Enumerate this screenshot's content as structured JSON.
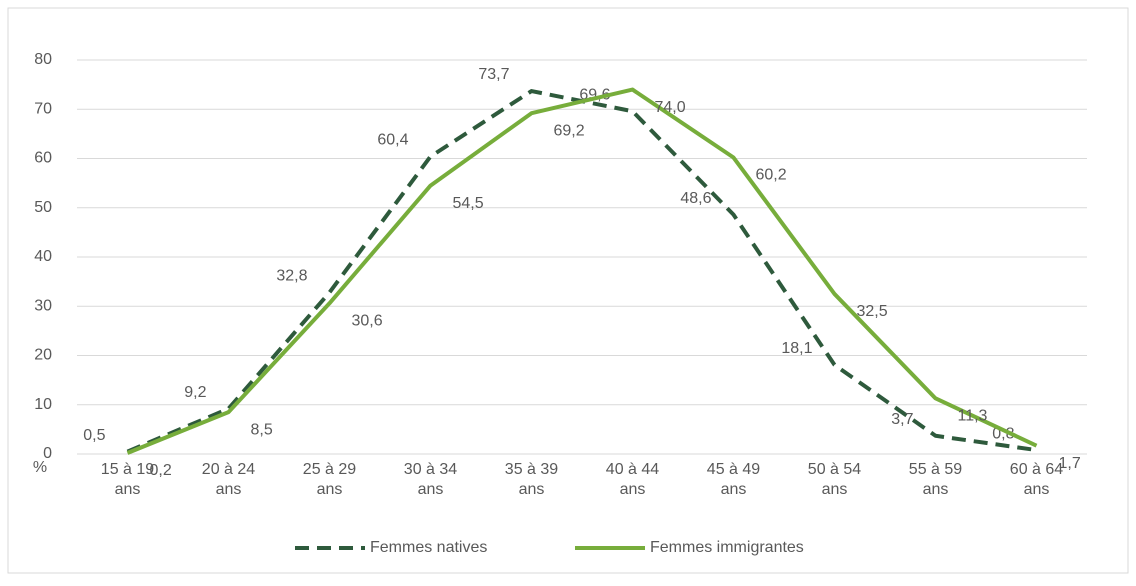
{
  "chart_data": {
    "type": "line",
    "y_label": "%",
    "categories": [
      "15 à 19 ans",
      "20 à 24 ans",
      "25 à 29 ans",
      "30 à 34 ans",
      "35 à 39 ans",
      "40 à 44 ans",
      "45 à 49 ans",
      "50 à 54 ans",
      "55 à 59 ans",
      "60 à 64 ans"
    ],
    "series": [
      {
        "name": "Femmes natives",
        "color": "#2e5a3c",
        "dash": true,
        "values": [
          0.5,
          9.2,
          32.8,
          60.4,
          73.7,
          69.6,
          48.6,
          18.1,
          3.7,
          0.8
        ],
        "value_labels": [
          "0,5",
          "9,2",
          "32,8",
          "60,4",
          "73,7",
          "69,6",
          "48,6",
          "18,1",
          "3,7",
          "0,8"
        ]
      },
      {
        "name": "Femmes immigrantes",
        "color": "#77ad3b",
        "dash": false,
        "values": [
          0.2,
          8.5,
          30.6,
          54.5,
          69.2,
          74.0,
          60.2,
          32.5,
          11.3,
          1.7
        ],
        "value_labels": [
          "0,2",
          "8,5",
          "30,6",
          "54,5",
          "69,2",
          "74,0",
          "60,2",
          "32,5",
          "11,3",
          "1,7"
        ]
      }
    ],
    "ylim": [
      0,
      80
    ],
    "yticks": [
      0,
      10,
      20,
      30,
      40,
      50,
      60,
      70,
      80
    ],
    "grid": true,
    "legend": "bottom"
  }
}
